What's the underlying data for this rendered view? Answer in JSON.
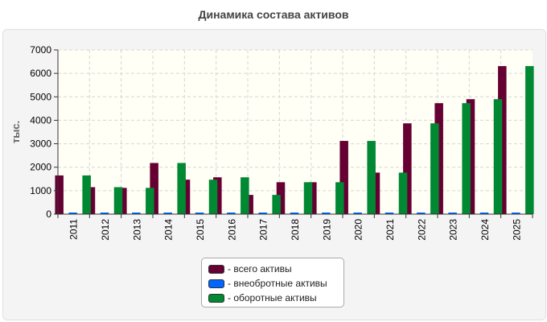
{
  "chart_data": {
    "type": "bar",
    "title": "Динамика состава активов",
    "ylabel": "тыс.",
    "xlabel": "",
    "categories": [
      "2011",
      "2012",
      "2013",
      "2014",
      "2015",
      "2016",
      "2017",
      "2018",
      "2019",
      "2020",
      "2021",
      "2022",
      "2023",
      "2024",
      "2025"
    ],
    "series": [
      {
        "name": "- всего активы",
        "color": "#660033",
        "values": [
          1650,
          1150,
          1120,
          2180,
          1470,
          1570,
          820,
          1360,
          1360,
          3120,
          1770,
          3870,
          4730,
          4900,
          6310
        ]
      },
      {
        "name": "- внеобротные активы",
        "color": "#0066ff",
        "values": [
          15,
          15,
          15,
          15,
          15,
          15,
          15,
          15,
          15,
          15,
          15,
          15,
          15,
          15,
          15
        ]
      },
      {
        "name": "- оборотные активы",
        "color": "#008833",
        "values": [
          1650,
          1150,
          1120,
          2180,
          1470,
          1570,
          820,
          1360,
          1360,
          3120,
          1770,
          3870,
          4730,
          4900,
          6310
        ]
      }
    ],
    "ylim": [
      0,
      7000
    ],
    "yticks": [
      0,
      1000,
      2000,
      3000,
      4000,
      5000,
      6000,
      7000
    ],
    "grid": true,
    "legend_position": "bottom"
  }
}
